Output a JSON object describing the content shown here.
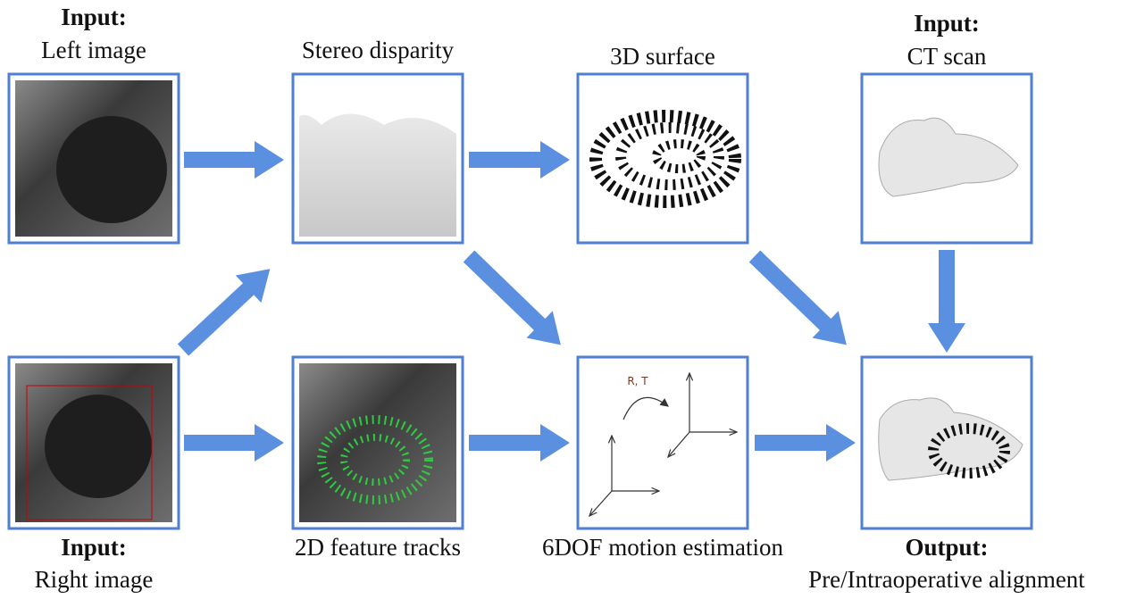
{
  "nodes": [
    {
      "heading": "Input:",
      "label": "Left image"
    },
    {
      "label": "Stereo disparity"
    },
    {
      "label": "3D surface"
    },
    {
      "heading": "Input:",
      "label": "CT scan"
    },
    {
      "heading": "Input:",
      "label": "Right image"
    },
    {
      "label": "2D feature tracks"
    },
    {
      "label": "6DOF motion estimation",
      "annotation": "R, T"
    },
    {
      "heading": "Output:",
      "label": "Pre/Intraoperative alignment"
    }
  ]
}
